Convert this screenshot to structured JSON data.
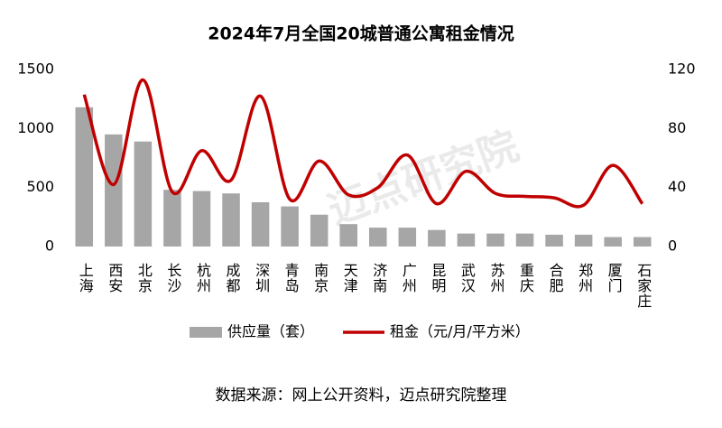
{
  "chart_data": {
    "type": "bar_line",
    "title": "2024年7月全国20城普通公寓租金情况",
    "source": "数据来源：网上公开资料，迈点研究院整理",
    "watermark": "迈点研究院",
    "categories": [
      "上海",
      "西安",
      "北京",
      "长沙",
      "杭州",
      "成都",
      "深圳",
      "青岛",
      "南京",
      "天津",
      "济南",
      "广州",
      "昆明",
      "武汉",
      "苏州",
      "重庆",
      "合肥",
      "郑州",
      "厦门",
      "石家庄"
    ],
    "series": [
      {
        "name": "供应量（套）",
        "color": "#a6a6a6",
        "type": "bar",
        "values": [
          1180,
          950,
          890,
          480,
          470,
          450,
          375,
          340,
          270,
          190,
          160,
          160,
          140,
          110,
          110,
          110,
          100,
          100,
          80,
          80
        ]
      },
      {
        "name": "租金（元/月/平方米）",
        "color": "#c00000",
        "type": "line",
        "axis": "y2",
        "values": [
          103,
          42,
          113,
          37,
          65,
          45,
          102,
          32,
          58,
          35,
          40,
          62,
          29,
          51,
          36,
          34,
          33,
          28,
          55,
          29
        ]
      }
    ],
    "ylim": [
      0,
      1500
    ],
    "yticks": [
      0,
      500,
      1000,
      1500
    ],
    "y2lim": [
      0,
      120
    ],
    "y2ticks": [
      0,
      40,
      80,
      120
    ],
    "legend": "bottom"
  }
}
